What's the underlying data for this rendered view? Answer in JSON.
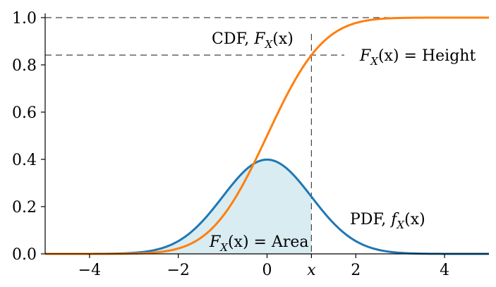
{
  "chart_data": {
    "type": "line",
    "xlim": [
      -5,
      5
    ],
    "ylim": [
      0,
      1.0
    ],
    "x_ticks": [
      {
        "value": -4,
        "label": "−4"
      },
      {
        "value": -2,
        "label": "−2"
      },
      {
        "value": 0,
        "label": "0"
      },
      {
        "value": 2,
        "label": "2"
      },
      {
        "value": 4,
        "label": "4"
      }
    ],
    "y_ticks": [
      {
        "value": 0.0,
        "label": "0.0"
      },
      {
        "value": 0.2,
        "label": "0.2"
      },
      {
        "value": 0.4,
        "label": "0.4"
      },
      {
        "value": 0.6,
        "label": "0.6"
      },
      {
        "value": 0.8,
        "label": "0.8"
      },
      {
        "value": 1.0,
        "label": "1.0"
      }
    ],
    "marker_x": {
      "value": 1.0,
      "label": "x"
    },
    "series": [
      {
        "name": "PDF, f_X(x)",
        "color": "#1f77b4",
        "x": [
          -5,
          -4.5,
          -4,
          -3.5,
          -3,
          -2.5,
          -2,
          -1.5,
          -1,
          -0.5,
          0,
          0.5,
          1,
          1.5,
          2,
          2.5,
          3,
          3.5,
          4,
          4.5,
          5
        ],
        "values": [
          0.0,
          0.0,
          0.0001,
          0.0009,
          0.0044,
          0.0175,
          0.054,
          0.1295,
          0.242,
          0.3521,
          0.3989,
          0.3521,
          0.242,
          0.1295,
          0.054,
          0.0175,
          0.0044,
          0.0009,
          0.0001,
          0.0,
          0.0
        ]
      },
      {
        "name": "CDF, F_X(x)",
        "color": "#ff7f0e",
        "x": [
          -5,
          -4.5,
          -4,
          -3.5,
          -3,
          -2.5,
          -2,
          -1.5,
          -1,
          -0.5,
          0,
          0.5,
          1,
          1.5,
          2,
          2.5,
          3,
          3.5,
          4,
          4.5,
          5
        ],
        "values": [
          0.0,
          0.0,
          0.0,
          0.0002,
          0.0013,
          0.0062,
          0.0228,
          0.0668,
          0.1587,
          0.3085,
          0.5,
          0.6915,
          0.8413,
          0.9332,
          0.9772,
          0.9938,
          0.9987,
          0.9998,
          1.0,
          1.0,
          1.0
        ]
      }
    ],
    "shading": {
      "color": "#d8ecf2",
      "from_x": -5,
      "to_x": 1.0
    },
    "annotations": {
      "cdf_label": {
        "prefix": "CDF, ",
        "func": "F",
        "sub": "X",
        "arg": "(x)"
      },
      "height_label": {
        "func": "F",
        "sub": "X",
        "arg": "(x)",
        "suffix": " = Height"
      },
      "pdf_label": {
        "prefix": "PDF, ",
        "func": "f",
        "sub": "X",
        "arg": "(x)"
      },
      "area_label": {
        "func": "F",
        "sub": "X",
        "arg": "(x)",
        "suffix": " = Area"
      }
    },
    "grid": false
  }
}
